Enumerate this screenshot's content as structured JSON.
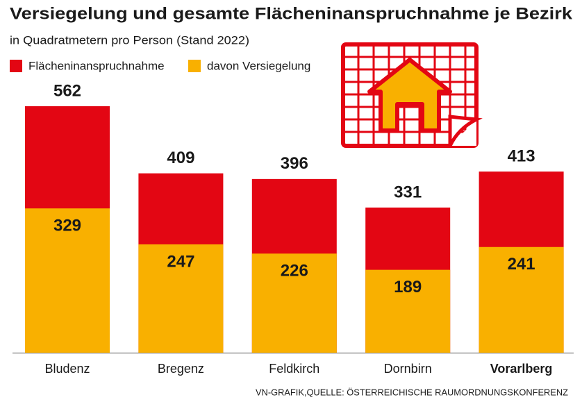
{
  "chart_data": {
    "type": "bar",
    "title": "Versiegelung und gesamte Flächeninanspruchnahme je Bezirk",
    "subtitle": "in Quadratmetern pro Person (Stand 2022)",
    "source": "VN-GRAFIK,QUELLE: ÖSTERREICHISCHE RAUMORDNUNGSKONFERENZ",
    "categories": [
      "Bludenz",
      "Bregenz",
      "Feldkirch",
      "Dornbirn",
      "Vorarlberg"
    ],
    "series": [
      {
        "name": "Flächeninanspruchnahme",
        "color": "#e30613",
        "values": [
          562,
          409,
          396,
          331,
          413
        ]
      },
      {
        "name": "davon Versiegelung",
        "color": "#f9b000",
        "values": [
          329,
          247,
          226,
          189,
          241
        ]
      }
    ]
  }
}
